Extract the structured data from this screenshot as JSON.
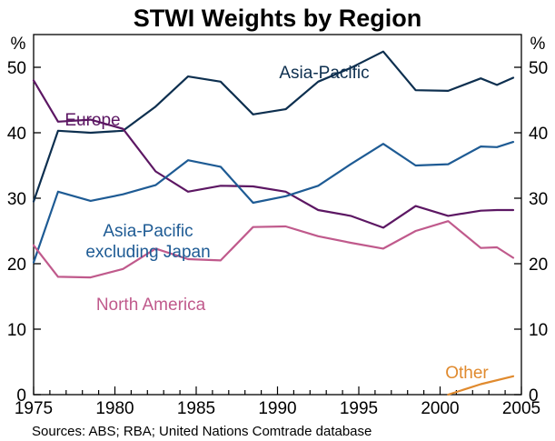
{
  "chart_data": {
    "type": "line",
    "title": "STWI Weights by Region",
    "ylabel_left": "%",
    "ylabel_right": "%",
    "xlim": [
      1975,
      2005
    ],
    "ylim": [
      0,
      55
    ],
    "x_ticks": [
      1975,
      1980,
      1985,
      1990,
      1995,
      2000,
      2005
    ],
    "y_ticks": [
      0,
      10,
      20,
      30,
      40,
      50
    ],
    "x_tick_labels": [
      "1975",
      "1980",
      "1985",
      "1990",
      "1995",
      "2000",
      "2005"
    ],
    "y_tick_labels": [
      "0",
      "10",
      "20",
      "30",
      "40",
      "50"
    ],
    "grid": false,
    "source": "Sources: ABS; RBA; United Nations Comtrade database",
    "series": [
      {
        "key": "asia_pacific",
        "name": "Asia-Pacific",
        "label_lines": [
          "Asia-Pacific"
        ],
        "color": "#0d2f4f",
        "points": [
          [
            1975,
            29.5
          ],
          [
            1976.5,
            40.3
          ],
          [
            1978.5,
            40.0
          ],
          [
            1980.5,
            40.3
          ],
          [
            1982.5,
            44.0
          ],
          [
            1984.5,
            48.6
          ],
          [
            1986.5,
            47.8
          ],
          [
            1988.5,
            42.8
          ],
          [
            1990.5,
            43.6
          ],
          [
            1992.5,
            47.8
          ],
          [
            1994.5,
            49.9
          ],
          [
            1996.5,
            52.4
          ],
          [
            1998.5,
            46.5
          ],
          [
            2000.5,
            46.4
          ],
          [
            2002.5,
            48.3
          ],
          [
            2003.5,
            47.3
          ],
          [
            2004.5,
            48.4
          ]
        ]
      },
      {
        "key": "europe",
        "name": "Europe",
        "label_lines": [
          "Europe"
        ],
        "color": "#5c1763",
        "points": [
          [
            1975,
            48.0
          ],
          [
            1976.5,
            41.7
          ],
          [
            1978.5,
            42.0
          ],
          [
            1980.5,
            40.6
          ],
          [
            1982.5,
            34.1
          ],
          [
            1984.5,
            31.0
          ],
          [
            1986.5,
            31.9
          ],
          [
            1988.5,
            31.8
          ],
          [
            1990.5,
            31.0
          ],
          [
            1992.5,
            28.2
          ],
          [
            1994.5,
            27.3
          ],
          [
            1996.5,
            25.5
          ],
          [
            1998.5,
            28.8
          ],
          [
            2000.5,
            27.3
          ],
          [
            2002.5,
            28.1
          ],
          [
            2003.5,
            28.2
          ],
          [
            2004.5,
            28.2
          ]
        ]
      },
      {
        "key": "asia_pacific_ex_japan",
        "name": "Asia-Pacific excluding Japan",
        "label_lines": [
          "Asia-Pacific",
          "excluding Japan"
        ],
        "color": "#1e5b94",
        "points": [
          [
            1975,
            20.2
          ],
          [
            1976.5,
            31.0
          ],
          [
            1978.5,
            29.6
          ],
          [
            1980.5,
            30.6
          ],
          [
            1982.5,
            32.0
          ],
          [
            1984.5,
            35.8
          ],
          [
            1986.5,
            34.8
          ],
          [
            1988.5,
            29.3
          ],
          [
            1990.5,
            30.3
          ],
          [
            1992.5,
            31.9
          ],
          [
            1994.5,
            35.2
          ],
          [
            1996.5,
            38.3
          ],
          [
            1998.5,
            35.0
          ],
          [
            2000.5,
            35.2
          ],
          [
            2002.5,
            37.9
          ],
          [
            2003.5,
            37.8
          ],
          [
            2004.5,
            38.6
          ]
        ]
      },
      {
        "key": "north_america",
        "name": "North America",
        "label_lines": [
          "North America"
        ],
        "color": "#c05a8c",
        "points": [
          [
            1975,
            22.8
          ],
          [
            1976.5,
            18.0
          ],
          [
            1978.5,
            17.9
          ],
          [
            1980.5,
            19.2
          ],
          [
            1982.5,
            22.3
          ],
          [
            1984.5,
            20.7
          ],
          [
            1986.5,
            20.5
          ],
          [
            1988.5,
            25.6
          ],
          [
            1990.5,
            25.7
          ],
          [
            1992.5,
            24.2
          ],
          [
            1994.5,
            23.2
          ],
          [
            1996.5,
            22.3
          ],
          [
            1998.5,
            25.0
          ],
          [
            2000.5,
            26.5
          ],
          [
            2002.5,
            22.4
          ],
          [
            2003.5,
            22.5
          ],
          [
            2004.5,
            20.9
          ]
        ]
      },
      {
        "key": "other",
        "name": "Other",
        "label_lines": [
          "Other"
        ],
        "color": "#e08a2e",
        "points": [
          [
            2000.5,
            0.0
          ],
          [
            2002.5,
            1.6
          ],
          [
            2004.5,
            2.8
          ]
        ]
      }
    ]
  }
}
